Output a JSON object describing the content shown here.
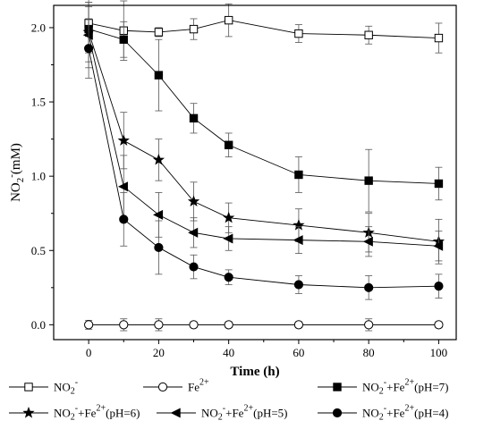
{
  "chart_data": {
    "type": "line",
    "xlabel": "Time (h)",
    "ylabel": "NO2-(mM)",
    "xlim": [
      -10,
      105
    ],
    "ylim": [
      -0.1,
      2.15
    ],
    "x_ticks": [
      0,
      20,
      40,
      60,
      80,
      100
    ],
    "y_ticks": [
      0.0,
      0.5,
      1.0,
      1.5,
      2.0
    ],
    "x_tick_labels": [
      "0",
      "20",
      "40",
      "60",
      "80",
      "100"
    ],
    "y_tick_labels": [
      "0.0",
      "0.5",
      "1.0",
      "1.5",
      "2.0"
    ],
    "grid": false,
    "legend_placement": "bottom",
    "series": [
      {
        "name": "NO2-",
        "name_parts": {
          "base": "NO",
          "sub": "2",
          "sup": "-",
          "rest": ""
        },
        "marker": "open-square",
        "x": [
          0,
          10,
          20,
          30,
          40,
          60,
          80,
          100
        ],
        "y": [
          2.03,
          1.98,
          1.97,
          1.99,
          2.05,
          1.96,
          1.95,
          1.93
        ],
        "err": [
          0.2,
          0.2,
          0.03,
          0.07,
          0.11,
          0.06,
          0.06,
          0.1
        ]
      },
      {
        "name": "Fe2+",
        "name_parts": {
          "base": "Fe",
          "sub": "",
          "sup": "2+",
          "rest": ""
        },
        "marker": "open-circle",
        "x": [
          0,
          10,
          20,
          30,
          40,
          60,
          80,
          100
        ],
        "y": [
          0.0,
          0.0,
          0.0,
          0.0,
          0.0,
          0.0,
          0.0,
          0.0
        ],
        "err": [
          0.03,
          0.04,
          0.04,
          0.02,
          0.02,
          0.02,
          0.04,
          0.02
        ]
      },
      {
        "name": "NO2-+Fe2+(pH=7)",
        "name_parts": {
          "base": "NO",
          "sub": "2",
          "sup": "-",
          "rest": "+Fe",
          "sup2": "2+",
          "tail": "(pH=7)"
        },
        "marker": "filled-square",
        "x": [
          0,
          10,
          20,
          30,
          40,
          60,
          80,
          100
        ],
        "y": [
          1.99,
          1.92,
          1.68,
          1.39,
          1.21,
          1.01,
          0.97,
          0.95
        ],
        "err": [
          0.15,
          0.12,
          0.24,
          0.1,
          0.08,
          0.12,
          0.21,
          0.11
        ]
      },
      {
        "name": "NO2-+Fe2+(pH=6)",
        "name_parts": {
          "base": "NO",
          "sub": "2",
          "sup": "-",
          "rest": "+Fe",
          "sup2": "2+",
          "tail": "(pH=6)"
        },
        "marker": "filled-star",
        "x": [
          0,
          10,
          20,
          30,
          40,
          60,
          80,
          100
        ],
        "y": [
          1.97,
          1.24,
          1.11,
          0.83,
          0.72,
          0.67,
          0.62,
          0.56
        ],
        "err": [
          0.2,
          0.19,
          0.14,
          0.13,
          0.1,
          0.11,
          0.13,
          0.15
        ]
      },
      {
        "name": "NO2-+Fe2+(pH=5)",
        "name_parts": {
          "base": "NO",
          "sub": "2",
          "sup": "-",
          "rest": "+Fe",
          "sup2": "2+",
          "tail": "(pH=5)"
        },
        "marker": "filled-left-triangle",
        "x": [
          0,
          10,
          20,
          30,
          40,
          60,
          80,
          100
        ],
        "y": [
          1.95,
          0.93,
          0.74,
          0.62,
          0.58,
          0.57,
          0.56,
          0.53
        ],
        "err": [
          0.22,
          0.21,
          0.15,
          0.1,
          0.08,
          0.09,
          0.1,
          0.1
        ]
      },
      {
        "name": "NO2-+Fe2+(pH=4)",
        "name_parts": {
          "base": "NO",
          "sub": "2",
          "sup": "-",
          "rest": "+Fe",
          "sup2": "2+",
          "tail": "(pH=4)"
        },
        "marker": "filled-circle",
        "x": [
          0,
          10,
          20,
          30,
          40,
          60,
          80,
          100
        ],
        "y": [
          1.86,
          0.71,
          0.52,
          0.39,
          0.32,
          0.27,
          0.25,
          0.26
        ],
        "err": [
          0.2,
          0.18,
          0.18,
          0.08,
          0.05,
          0.06,
          0.08,
          0.08
        ]
      }
    ]
  }
}
